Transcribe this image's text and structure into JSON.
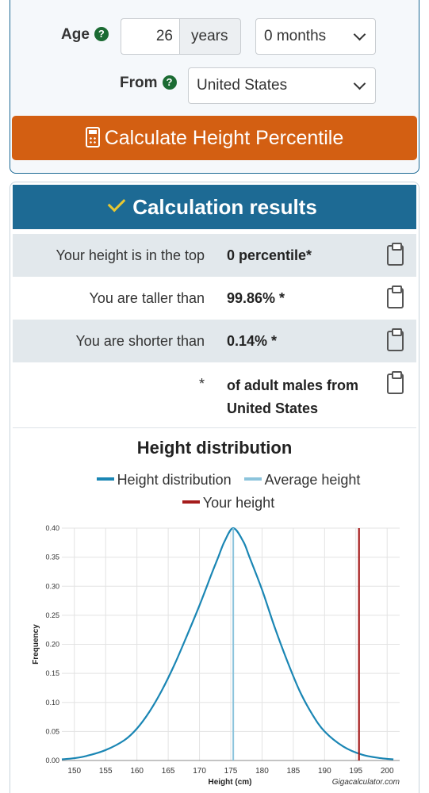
{
  "form": {
    "age_label": "Age",
    "age_value": "26",
    "age_unit": "years",
    "months_value": "0 months",
    "from_label": "From",
    "country_value": "United States",
    "help_glyph": "?",
    "calculate_label": "Calculate Height Percentile"
  },
  "results": {
    "header": "Calculation results",
    "rows": [
      {
        "label": "Your height is in the top",
        "value": "0 percentile*"
      },
      {
        "label": "You are taller than",
        "value": "99.86% *"
      },
      {
        "label": "You are shorter than",
        "value": "0.14% *"
      }
    ],
    "note_star": "*",
    "note_text": "of adult males from United States"
  },
  "chart": {
    "title": "Height distribution",
    "legend": [
      {
        "label": "Height distribution",
        "color": "#1a86b4"
      },
      {
        "label": "Average height",
        "color": "#8cc4dc"
      },
      {
        "label": "Your height",
        "color": "#a51c1c"
      }
    ],
    "watermark": "Gigacalculator.com"
  },
  "chart_data": {
    "type": "line",
    "title": "Height distribution",
    "xlabel": "Height (cm)",
    "ylabel": "Frequency",
    "xlim": [
      148,
      202
    ],
    "ylim": [
      0,
      0.4
    ],
    "x_ticks": [
      150,
      155,
      160,
      165,
      170,
      175,
      180,
      185,
      190,
      195,
      200
    ],
    "y_ticks": [
      0.0,
      0.05,
      0.1,
      0.15,
      0.2,
      0.25,
      0.3,
      0.35,
      0.4
    ],
    "grid": true,
    "legend_position": "top",
    "series": [
      {
        "name": "Height distribution",
        "color": "#1a86b4",
        "x": [
          148,
          150,
          152,
          155,
          158,
          160,
          162,
          164,
          166,
          168,
          170,
          172,
          173,
          174,
          175.4,
          177,
          178,
          180,
          182,
          184,
          186,
          188,
          190,
          193,
          196,
          199,
          201
        ],
        "y": [
          0.002,
          0.004,
          0.008,
          0.018,
          0.035,
          0.055,
          0.084,
          0.121,
          0.165,
          0.215,
          0.267,
          0.323,
          0.35,
          0.377,
          0.4,
          0.377,
          0.35,
          0.294,
          0.23,
          0.172,
          0.12,
          0.08,
          0.05,
          0.024,
          0.01,
          0.004,
          0.002
        ]
      },
      {
        "name": "Average height",
        "color": "#8cc4dc",
        "x": [
          175.4,
          175.4
        ],
        "y": [
          0,
          0.4
        ]
      },
      {
        "name": "Your height",
        "color": "#a51c1c",
        "x": [
          195.5,
          195.5
        ],
        "y": [
          0,
          0.4
        ]
      }
    ]
  }
}
